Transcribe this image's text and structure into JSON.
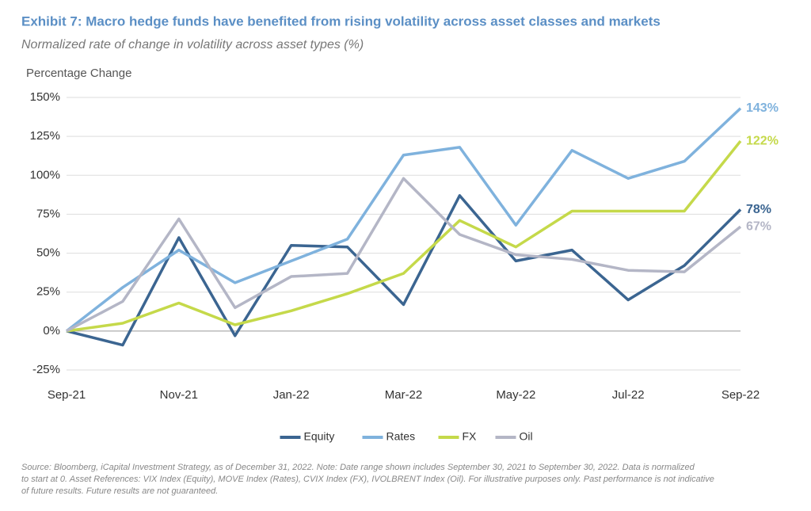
{
  "chart_data": {
    "type": "line",
    "title": "Exhibit 7: Macro hedge funds have benefited from rising volatility across asset classes and markets",
    "subtitle": "Normalized rate of change in volatility across asset types (%)",
    "y_label": "Percentage Change",
    "categories": [
      "Sep-21",
      null,
      "Nov-21",
      null,
      "Jan-22",
      null,
      "Mar-22",
      null,
      "May-22",
      null,
      "Jul-22",
      null,
      "Sep-22"
    ],
    "series": [
      {
        "name": "Equity",
        "color": "#3b6591",
        "values": [
          0,
          -9,
          60,
          -3,
          55,
          54,
          17,
          87,
          45,
          52,
          20,
          42,
          78
        ],
        "value_labels": [
          null,
          null,
          null,
          null,
          null,
          null,
          null,
          null,
          null,
          null,
          null,
          null,
          "78%"
        ]
      },
      {
        "name": "Rates",
        "color": "#7fb2dd",
        "values": [
          0,
          28,
          52,
          31,
          45,
          59,
          113,
          118,
          68,
          116,
          98,
          109,
          143
        ],
        "value_labels": [
          null,
          null,
          null,
          null,
          null,
          null,
          null,
          null,
          null,
          null,
          null,
          null,
          "143%"
        ]
      },
      {
        "name": "FX",
        "color": "#c5d94a",
        "values": [
          0,
          5,
          18,
          4,
          13,
          24,
          37,
          71,
          54,
          77,
          77,
          77,
          122
        ],
        "value_labels": [
          null,
          null,
          null,
          null,
          null,
          null,
          null,
          null,
          null,
          null,
          null,
          null,
          "122%"
        ]
      },
      {
        "name": "Oil",
        "color": "#b4b6c6",
        "values": [
          0,
          19,
          72,
          15,
          35,
          37,
          98,
          62,
          49,
          46,
          39,
          38,
          67
        ],
        "value_labels": [
          null,
          null,
          null,
          null,
          null,
          null,
          null,
          null,
          null,
          null,
          null,
          null,
          "67%"
        ]
      }
    ],
    "ylim": [
      -25,
      150
    ],
    "yticks": [
      {
        "value": -25,
        "label": "-25%"
      },
      {
        "value": 0,
        "label": "0%"
      },
      {
        "value": 25,
        "label": "25%"
      },
      {
        "value": 50,
        "label": "50%"
      },
      {
        "value": 75,
        "label": "75%"
      },
      {
        "value": 100,
        "label": "100%"
      },
      {
        "value": 125,
        "label": "125%"
      },
      {
        "value": 150,
        "label": "150%"
      }
    ],
    "grid": true,
    "legend": "bottom",
    "source": [
      "Source: Bloomberg, iCapital Investment Strategy, as of December 31, 2022. Note: Date range shown includes September 30, 2021 to September 30, 2022. Data is normalized",
      "to start at 0. Asset References: VIX Index (Equity), MOVE Index (Rates), CVIX Index (FX), IVOLBRENT Index (Oil). For illustrative purposes only. Past performance is not indicative",
      "of future results. Future results are not guaranteed."
    ]
  }
}
